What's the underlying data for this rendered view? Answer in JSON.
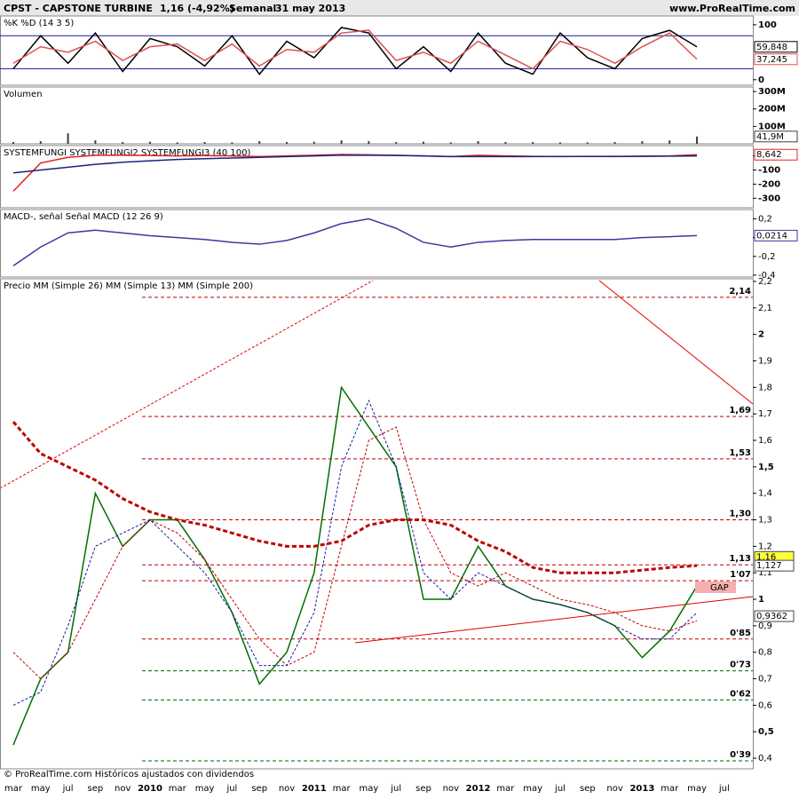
{
  "header": {
    "symbol": "CPST - CAPSTONE TURBINE",
    "price": "1,16 (-4,92%)",
    "period": "Semanal",
    "date": "31 may 2013",
    "site": "www.ProRealTime.com"
  },
  "footer": "© ProRealTime.com Históricos ajustados con dividendos",
  "chart_data": [
    {
      "type": "line",
      "title": "%K %D (14 3 5)",
      "ylim": [
        -10,
        116
      ],
      "yticks": [
        0,
        100
      ],
      "reference_lines": [
        20,
        80
      ],
      "series": [
        {
          "color": "#000000",
          "values": [
            20,
            80,
            30,
            85,
            15,
            75,
            60,
            25,
            80,
            10,
            70,
            40,
            95,
            85,
            20,
            60,
            15,
            85,
            30,
            10,
            85,
            40,
            20,
            75,
            90,
            59.848,
            null
          ],
          "value_labels": [
            null,
            null,
            null,
            null,
            null,
            null,
            null,
            null,
            null,
            null,
            null,
            null,
            null,
            null,
            null,
            null,
            null,
            null,
            null,
            null,
            null,
            null,
            null,
            null,
            null,
            "59,848",
            null
          ]
        },
        {
          "color": "#e05050",
          "values": [
            30,
            60,
            50,
            70,
            35,
            60,
            65,
            35,
            65,
            25,
            55,
            50,
            85,
            90,
            35,
            50,
            30,
            70,
            45,
            20,
            70,
            55,
            30,
            60,
            85,
            37.245,
            null
          ],
          "value_labels": [
            null,
            null,
            null,
            null,
            null,
            null,
            null,
            null,
            null,
            null,
            null,
            null,
            null,
            null,
            null,
            null,
            null,
            null,
            null,
            null,
            null,
            null,
            null,
            null,
            null,
            "37,245",
            null
          ]
        }
      ]
    },
    {
      "type": "bar",
      "title": "Volumen",
      "ylim": [
        0,
        326000000
      ],
      "yticks": [
        {
          "value": 100000000,
          "label": "100M"
        },
        {
          "value": 200000000,
          "label": "200M"
        },
        {
          "value": 300000000,
          "label": "300M"
        }
      ],
      "series": [
        {
          "color": "#404040",
          "values": [
            10000000,
            15000000,
            60000000,
            20000000,
            10000000,
            12000000,
            8000000,
            10000000,
            8000000,
            15000000,
            10000000,
            12000000,
            20000000,
            15000000,
            10000000,
            12000000,
            8000000,
            15000000,
            10000000,
            10000000,
            8000000,
            8000000,
            10000000,
            15000000,
            20000000,
            41900000,
            null
          ],
          "value_labels": [
            null,
            null,
            null,
            null,
            null,
            null,
            null,
            null,
            null,
            null,
            null,
            null,
            null,
            null,
            null,
            null,
            null,
            null,
            null,
            null,
            null,
            null,
            null,
            null,
            null,
            "41,9M",
            null
          ]
        }
      ]
    },
    {
      "type": "line",
      "title": "SYSTEMFUNGI SYSTEMFUNGI2 SYSTEMFUNGI3 (40 100)",
      "ylim": [
        -367,
        73
      ],
      "yticks": [
        0,
        -100,
        -200,
        -300
      ],
      "series": [
        {
          "color": "#e02020",
          "values": [
            -250,
            -50,
            -10,
            5,
            5,
            3,
            0,
            2,
            0,
            -5,
            0,
            5,
            10,
            8,
            5,
            0,
            -5,
            5,
            0,
            -3,
            -5,
            -3,
            -5,
            -2,
            0,
            8.642,
            null
          ],
          "value_labels": [
            null,
            null,
            null,
            null,
            null,
            null,
            null,
            null,
            null,
            null,
            null,
            null,
            null,
            null,
            null,
            null,
            null,
            null,
            null,
            null,
            null,
            null,
            null,
            null,
            null,
            "8,642",
            null
          ]
        },
        {
          "color": "#1a237e",
          "values": [
            -120,
            -100,
            -80,
            -60,
            -45,
            -35,
            -25,
            -20,
            -15,
            -10,
            -5,
            0,
            5,
            5,
            3,
            0,
            -5,
            -5,
            -5,
            -5,
            -4,
            -4,
            -3,
            -3,
            -2,
            0,
            null
          ]
        }
      ]
    },
    {
      "type": "line",
      "title": "MACD-, señal Señal MACD (12 26 9)",
      "ylim": [
        -0.42,
        0.3
      ],
      "yticks": [
        {
          "value": 0.2,
          "label": "0,2"
        },
        0,
        {
          "value": -0.2,
          "label": "-0,2"
        },
        {
          "value": -0.4,
          "label": "-0,4"
        }
      ],
      "series": [
        {
          "color": "#3a3aa0",
          "values": [
            -0.3,
            -0.1,
            0.05,
            0.08,
            0.05,
            0.02,
            0.0,
            -0.02,
            -0.05,
            -0.07,
            -0.03,
            0.05,
            0.15,
            0.2,
            0.1,
            -0.05,
            -0.1,
            -0.05,
            -0.03,
            -0.02,
            -0.02,
            -0.02,
            -0.02,
            0.0,
            0.01,
            0.0214,
            null
          ],
          "value_labels": [
            null,
            null,
            null,
            null,
            null,
            null,
            null,
            null,
            null,
            null,
            null,
            null,
            null,
            null,
            null,
            null,
            null,
            null,
            null,
            null,
            null,
            null,
            null,
            null,
            null,
            "0,0214",
            null
          ]
        }
      ]
    },
    {
      "type": "line",
      "title": "Precio MM (Simple 26) MM (Simple 13) MM (Simple 200)",
      "ylim": [
        0.36,
        2.21
      ],
      "categories": [
        "mar",
        "may",
        "jul",
        "sep",
        "nov",
        "2010",
        "mar",
        "may",
        "jul",
        "sep",
        "nov",
        "2011",
        "mar",
        "may",
        "jul",
        "sep",
        "nov",
        "2012",
        "mar",
        "may",
        "jul",
        "sep",
        "nov",
        "2013",
        "mar",
        "may",
        "jul"
      ],
      "yticks": [
        {
          "value": 0.4,
          "label": "0,4"
        },
        {
          "value": 0.5,
          "label": "0,5"
        },
        {
          "value": 0.6,
          "label": "0,6"
        },
        {
          "value": 0.7,
          "label": "0,7"
        },
        {
          "value": 0.8,
          "label": "0,8"
        },
        {
          "value": 0.9,
          "label": "0,9"
        },
        1,
        {
          "value": 1.1,
          "label": "1,1"
        },
        {
          "value": 1.2,
          "label": "1,2"
        },
        {
          "value": 1.3,
          "label": "1,3"
        },
        {
          "value": 1.4,
          "label": "1,4"
        },
        {
          "value": 1.5,
          "label": "1,5"
        },
        {
          "value": 1.6,
          "label": "1,6"
        },
        {
          "value": 1.7,
          "label": "1,7"
        },
        {
          "value": 1.8,
          "label": "1,8"
        },
        {
          "value": 1.9,
          "label": "1,9"
        },
        2,
        {
          "value": 2.1,
          "label": "2,1"
        },
        {
          "value": 2.2,
          "label": "2,2"
        }
      ],
      "levels": [
        {
          "value": 2.14,
          "label": "2,14",
          "color": "#c00000"
        },
        {
          "value": 1.69,
          "label": "1,69",
          "color": "#c00000"
        },
        {
          "value": 1.53,
          "label": "1,53",
          "color": "#c00000"
        },
        {
          "value": 1.3,
          "label": "1,30",
          "color": "#c00000"
        },
        {
          "value": 1.13,
          "label": "1,13",
          "color": "#c00000"
        },
        {
          "value": 1.07,
          "label": "1'07",
          "color": "#c00000"
        },
        {
          "value": 0.85,
          "label": "0'85",
          "color": "#c00000"
        },
        {
          "value": 0.73,
          "label": "0'73",
          "color": "#006000"
        },
        {
          "value": 0.62,
          "label": "0'62",
          "color": "#006000"
        },
        {
          "value": 0.39,
          "label": "0'39",
          "color": "#006000"
        }
      ],
      "last_values": [
        {
          "value": 1.16,
          "label": "1,16",
          "color": "#ffff40"
        },
        {
          "value": 1.127,
          "label": "1,127",
          "color": "#ffffff"
        },
        {
          "value": 0.9362,
          "label": "0,9362",
          "color": "#ffffff"
        }
      ],
      "annotation": "GAP",
      "series": [
        {
          "color": "#007000",
          "width": 1.5,
          "dash": "",
          "values": [
            0.45,
            0.7,
            0.8,
            1.4,
            1.2,
            1.3,
            1.3,
            1.15,
            0.95,
            0.68,
            0.8,
            1.1,
            1.8,
            1.65,
            1.5,
            1.0,
            1.0,
            1.2,
            1.05,
            1.0,
            0.98,
            0.95,
            0.9,
            0.78,
            0.88,
            1.05,
            null
          ]
        },
        {
          "color": "#c00000",
          "width": 1,
          "dash": "3 2",
          "values": [
            0.8,
            0.7,
            0.8,
            1.0,
            1.2,
            1.3,
            1.25,
            1.15,
            1.0,
            0.85,
            0.75,
            0.8,
            1.2,
            1.6,
            1.65,
            1.3,
            1.1,
            1.05,
            1.1,
            1.05,
            1.0,
            0.98,
            0.95,
            0.9,
            0.88,
            0.92,
            null
          ]
        },
        {
          "color": "#1a1aa0",
          "width": 1,
          "dash": "3 2",
          "values": [
            0.6,
            0.65,
            0.9,
            1.2,
            1.25,
            1.3,
            1.2,
            1.1,
            0.95,
            0.75,
            0.75,
            0.95,
            1.5,
            1.75,
            1.5,
            1.1,
            1.0,
            1.1,
            1.05,
            1.0,
            0.98,
            0.95,
            0.9,
            0.85,
            0.85,
            0.95,
            null
          ]
        },
        {
          "color": "#c00000",
          "width": 3,
          "dash": "5 3",
          "values": [
            1.67,
            1.55,
            1.5,
            1.45,
            1.38,
            1.33,
            1.3,
            1.28,
            1.25,
            1.22,
            1.2,
            1.2,
            1.22,
            1.28,
            1.3,
            1.3,
            1.28,
            1.22,
            1.18,
            1.12,
            1.1,
            1.1,
            1.1,
            1.11,
            1.12,
            1.127,
            null
          ]
        }
      ]
    }
  ]
}
